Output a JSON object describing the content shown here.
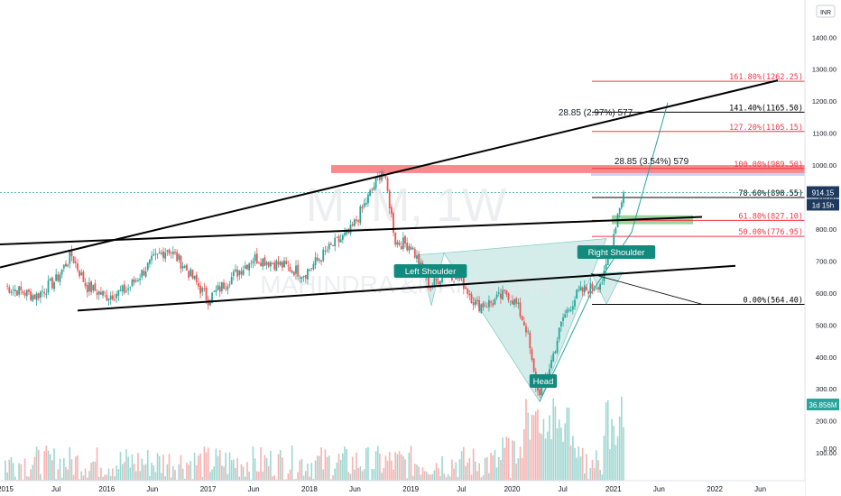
{
  "chart_data": {
    "type": "candlestick",
    "watermark": {
      "line1": "M_M, 1W",
      "line2": "MAHINDRA &MAHINDRA"
    },
    "currency": "INR",
    "y_axis": {
      "ticks": [
        "0.00",
        "100.00",
        "200.00",
        "300.00",
        "400.00",
        "500.00",
        "600.00",
        "700.00",
        "800.00",
        "900.00",
        "1000.00",
        "1100.00",
        "1200.00",
        "1300.00",
        "1400.00"
      ],
      "range": [
        -100,
        1420
      ]
    },
    "x_axis": {
      "ticks": [
        {
          "label": "2015",
          "t": 0
        },
        {
          "label": "Jul",
          "t": 0.5
        },
        {
          "label": "2016",
          "t": 1
        },
        {
          "label": "Jun",
          "t": 1.45
        },
        {
          "label": "2017",
          "t": 2
        },
        {
          "label": "Jun",
          "t": 2.45
        },
        {
          "label": "2018",
          "t": 3
        },
        {
          "label": "Jun",
          "t": 3.45
        },
        {
          "label": "2019",
          "t": 4
        },
        {
          "label": "Jul",
          "t": 4.5
        },
        {
          "label": "2020",
          "t": 5
        },
        {
          "label": "Jul",
          "t": 5.5
        },
        {
          "label": "2021",
          "t": 6
        },
        {
          "label": "Jun",
          "t": 6.45
        },
        {
          "label": "2022",
          "t": 7
        },
        {
          "label": "Jun",
          "t": 7.45
        }
      ]
    },
    "price_anchors": [
      [
        0,
        620
      ],
      [
        0.3,
        590
      ],
      [
        0.5,
        640
      ],
      [
        0.65,
        720
      ],
      [
        0.8,
        620
      ],
      [
        1.0,
        590
      ],
      [
        1.2,
        610
      ],
      [
        1.45,
        700
      ],
      [
        1.6,
        740
      ],
      [
        1.75,
        690
      ],
      [
        2.0,
        580
      ],
      [
        2.2,
        640
      ],
      [
        2.45,
        710
      ],
      [
        2.7,
        690
      ],
      [
        2.95,
        660
      ],
      [
        3.2,
        740
      ],
      [
        3.4,
        790
      ],
      [
        3.55,
        880
      ],
      [
        3.68,
        960
      ],
      [
        3.72,
        990
      ],
      [
        3.78,
        900
      ],
      [
        3.85,
        760
      ],
      [
        4.0,
        750
      ],
      [
        4.1,
        680
      ],
      [
        4.2,
        620
      ],
      [
        4.35,
        670
      ],
      [
        4.5,
        640
      ],
      [
        4.65,
        560
      ],
      [
        4.8,
        570
      ],
      [
        4.95,
        600
      ],
      [
        5.05,
        560
      ],
      [
        5.15,
        480
      ],
      [
        5.2,
        370
      ],
      [
        5.25,
        290
      ],
      [
        5.3,
        300
      ],
      [
        5.4,
        400
      ],
      [
        5.5,
        520
      ],
      [
        5.65,
        600
      ],
      [
        5.8,
        620
      ],
      [
        5.9,
        640
      ],
      [
        6.0,
        780
      ],
      [
        6.05,
        860
      ],
      [
        6.1,
        914.15
      ]
    ],
    "last_price": "914.15",
    "countdown": "1d 15h",
    "last_volume": "36.856M",
    "fibonacci": [
      {
        "label": "161.80%(1262.25)",
        "value": 1262.25,
        "color": "#f23645"
      },
      {
        "label": "141.40%(1165.50)",
        "value": 1165.5,
        "color": "#000000"
      },
      {
        "label": "127.20%(1105.15)",
        "value": 1105.15,
        "color": "#f23645"
      },
      {
        "label": "100.00%(989.50)",
        "value": 989.5,
        "color": "#f23645"
      },
      {
        "label": "78.60%(898.55)",
        "value": 898.55,
        "color": "#000000"
      },
      {
        "label": "61.80%(827.10)",
        "value": 827.1,
        "color": "#f23645"
      },
      {
        "label": "50.00%(776.95)",
        "value": 776.95,
        "color": "#f23645"
      },
      {
        "label": "0.00%(564.40)",
        "value": 564.4,
        "color": "#000000"
      }
    ],
    "annotations": {
      "measure1": "28.85 (2.97%) 577",
      "measure2": "28.85 (3.54%) 579",
      "left_shoulder": "Left Shoulder",
      "head": "Head",
      "right_shoulder": "Right Shoulder"
    },
    "colors": {
      "up": "#26a69a",
      "down": "#ef5350",
      "pattern_fill": "#b2dfdb",
      "resistance_zone": "#f77c80",
      "target_zone": "#4caf50",
      "price_badge": "#1e3a5f"
    }
  }
}
